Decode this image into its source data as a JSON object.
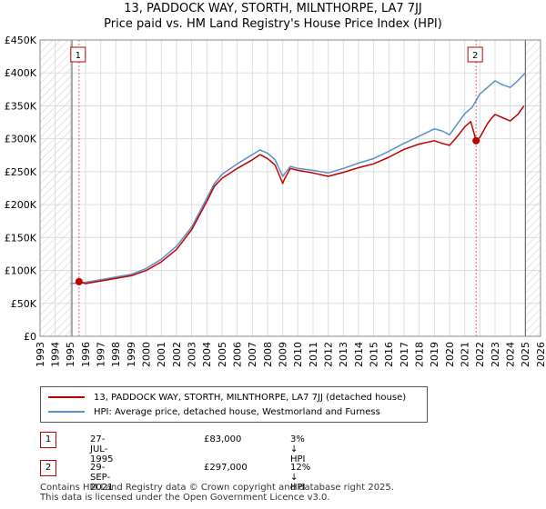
{
  "header": {
    "title_line1": "13, PADDOCK WAY, STORTH, MILNTHORPE, LA7 7JJ",
    "title_line2": "Price paid vs. HM Land Registry's House Price Index (HPI)"
  },
  "chart_data": {
    "type": "line",
    "title": "13, PADDOCK WAY, STORTH, MILNTHORPE, LA7 7JJ — Price paid vs. HM Land Registry's House Price Index (HPI)",
    "xlabel": "",
    "ylabel": "",
    "xlim": [
      1993,
      2026
    ],
    "ylim": [
      0,
      450000
    ],
    "y_ticks": [
      0,
      50000,
      100000,
      150000,
      200000,
      250000,
      300000,
      350000,
      400000,
      450000
    ],
    "y_tick_labels": [
      "£0",
      "£50K",
      "£100K",
      "£150K",
      "£200K",
      "£250K",
      "£300K",
      "£350K",
      "£400K",
      "£450K"
    ],
    "x_ticks": [
      1993,
      1994,
      1995,
      1996,
      1997,
      1998,
      1999,
      2000,
      2001,
      2002,
      2003,
      2004,
      2005,
      2006,
      2007,
      2008,
      2009,
      2010,
      2011,
      2012,
      2013,
      2014,
      2015,
      2016,
      2017,
      2018,
      2019,
      2020,
      2021,
      2022,
      2023,
      2024,
      2025,
      2026
    ],
    "grid": true,
    "hatched_ranges": [
      [
        1993,
        1995.1
      ],
      [
        2025.0,
        2026
      ]
    ],
    "series": [
      {
        "name": "13, PADDOCK WAY, STORTH, MILNTHORPE, LA7 7JJ (detached house)",
        "color": "#c00000",
        "x": [
          1995.55,
          1996,
          1997,
          1998,
          1999,
          2000,
          2001,
          2002,
          2003,
          2004,
          2004.5,
          2005,
          2006,
          2007,
          2007.5,
          2008,
          2008.5,
          2009,
          2009.1,
          2009.5,
          2010,
          2011,
          2012,
          2013,
          2014,
          2015,
          2016,
          2017,
          2018,
          2019,
          2019.5,
          2020,
          2020.5,
          2021,
          2021.4,
          2021.75,
          2022,
          2022.5,
          2022.8,
          2023,
          2023.5,
          2024,
          2024.5,
          2024.9
        ],
        "values": [
          83000,
          80000,
          84000,
          88000,
          92000,
          100000,
          113000,
          132000,
          162000,
          205000,
          228000,
          240000,
          255000,
          268000,
          276000,
          270000,
          260000,
          232000,
          238000,
          255000,
          252000,
          248000,
          243000,
          249000,
          256000,
          262000,
          272000,
          284000,
          292000,
          297000,
          293000,
          290000,
          303000,
          318000,
          326000,
          297000,
          302000,
          323000,
          332000,
          337000,
          332000,
          327000,
          337000,
          350000
        ]
      },
      {
        "name": "HPI: Average price, detached house, Westmorland and Furness",
        "color": "#5b8fc7",
        "x": [
          1995,
          1996,
          1997,
          1998,
          1999,
          2000,
          2001,
          2002,
          2003,
          2004,
          2004.5,
          2005,
          2006,
          2007,
          2007.5,
          2008,
          2008.5,
          2009,
          2009.5,
          2010,
          2011,
          2012,
          2013,
          2014,
          2015,
          2016,
          2017,
          2018,
          2019,
          2019.5,
          2020,
          2020.5,
          2021,
          2021.5,
          2022,
          2022.5,
          2023,
          2023.5,
          2024,
          2024.5,
          2025.0
        ],
        "values": [
          80000,
          82000,
          86000,
          90000,
          94000,
          103000,
          117000,
          137000,
          166000,
          210000,
          232000,
          246000,
          262000,
          276000,
          283000,
          278000,
          268000,
          243000,
          258000,
          255000,
          252000,
          248000,
          255000,
          263000,
          270000,
          281000,
          293000,
          304000,
          315000,
          312000,
          306000,
          322000,
          338000,
          348000,
          368000,
          378000,
          388000,
          382000,
          378000,
          388000,
          400000
        ]
      }
    ],
    "annotations": [
      {
        "label": "1",
        "x": 1995.57,
        "y": 83000
      },
      {
        "label": "2",
        "x": 2021.75,
        "y": 297000
      }
    ]
  },
  "legend": {
    "items": [
      {
        "label": "13, PADDOCK WAY, STORTH, MILNTHORPE, LA7 7JJ (detached house)",
        "color": "#c00000"
      },
      {
        "label": "HPI: Average price, detached house, Westmorland and Furness",
        "color": "#5b8fc7"
      }
    ]
  },
  "transactions": [
    {
      "num": "1",
      "date": "27-JUL-1995",
      "price": "£83,000",
      "hpi": "3% ↓ HPI"
    },
    {
      "num": "2",
      "date": "29-SEP-2021",
      "price": "£297,000",
      "hpi": "12% ↓ HPI"
    }
  ],
  "footer": {
    "line1": "Contains HM Land Registry data © Crown copyright and database right 2025.",
    "line2": "This data is licensed under the Open Government Licence v3.0."
  }
}
